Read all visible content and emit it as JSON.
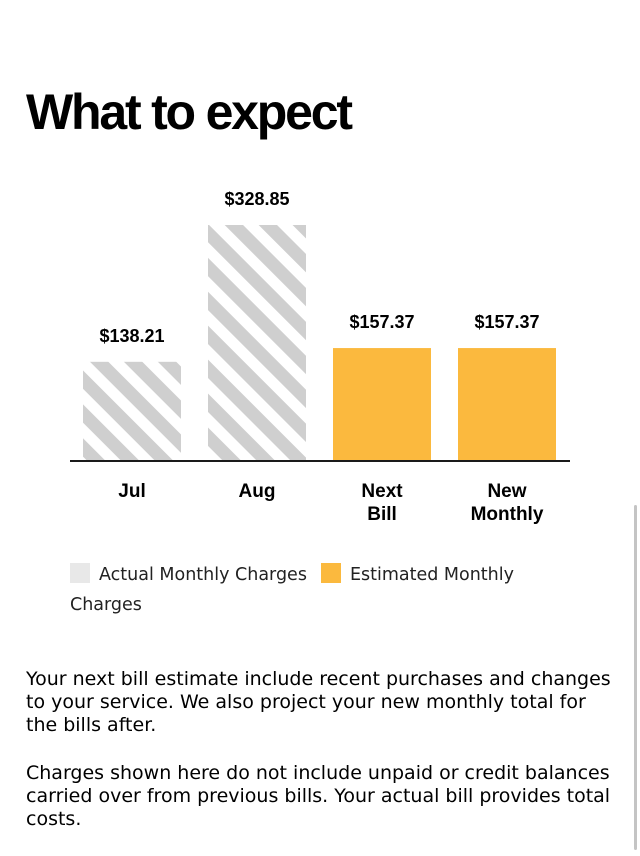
{
  "page": {
    "title": "What to expect"
  },
  "chart_data": {
    "type": "bar",
    "title": "",
    "xlabel": "",
    "ylabel": "",
    "ylim": [
      0,
      328.85
    ],
    "grid": false,
    "legend_position": "bottom",
    "categories": [
      {
        "line1": "Jul",
        "line2": ""
      },
      {
        "line1": "Aug",
        "line2": ""
      },
      {
        "line1": "Next",
        "line2": "Bill"
      },
      {
        "line1": "New",
        "line2": "Monthly"
      }
    ],
    "bars": [
      {
        "value": 138.21,
        "label": "$138.21",
        "kind": "actual"
      },
      {
        "value": 328.85,
        "label": "$328.85",
        "kind": "actual"
      },
      {
        "value": 157.37,
        "label": "$157.37",
        "kind": "estimated"
      },
      {
        "value": 157.37,
        "label": "$157.37",
        "kind": "estimated"
      }
    ],
    "colors": {
      "actual_stripe": "#cfcfcf",
      "actual_background": "#ffffff",
      "estimated": "#fbb93e",
      "baseline": "#1a1a1a"
    }
  },
  "legend": {
    "actual_label": "Actual Monthly Charges",
    "estimated_label": "Estimated Monthly Charges",
    "actual_swatch_color": "#e8e8e8",
    "estimated_swatch_color": "#fbb93e"
  },
  "description": {
    "paragraph1": "Your next bill estimate include recent purchases and changes to your service. We also project your new monthly total for the bills after.",
    "paragraph2": "Charges shown here do not include unpaid or credit balances carried over from previous bills. Your actual bill provides total costs."
  }
}
